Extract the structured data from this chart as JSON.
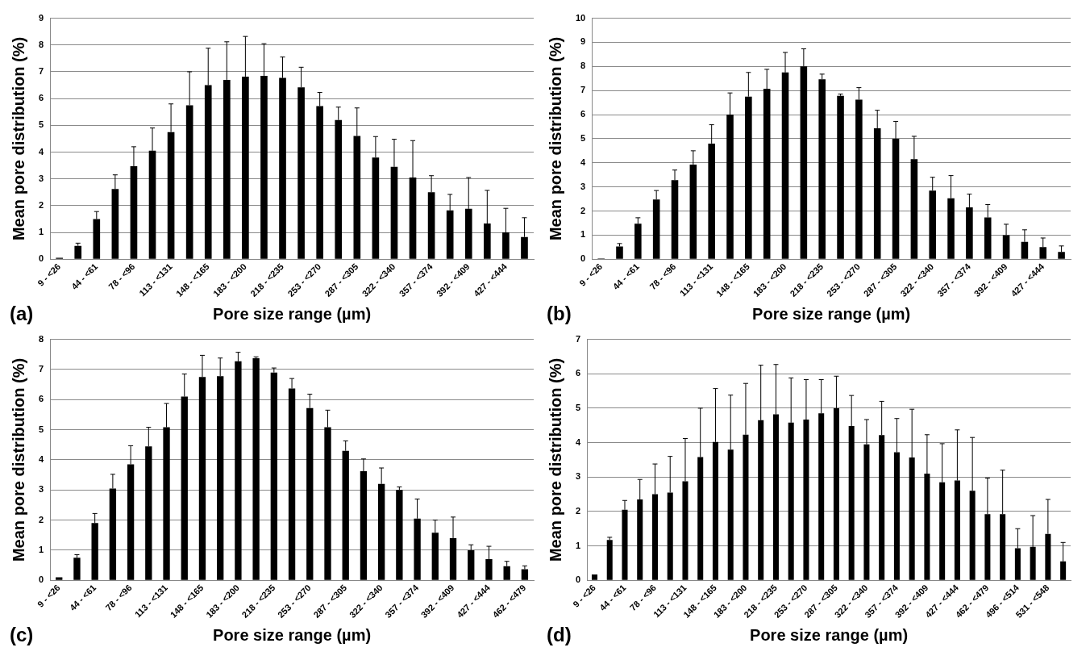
{
  "chart_data": [
    {
      "type": "bar",
      "xlabel": "Pore size range (µm)",
      "ylabel": "Mean pore distribution (%)",
      "color": "#000000",
      "grid": "y",
      "ylim": [
        0,
        9
      ],
      "yticks": [
        0,
        1,
        2,
        3,
        4,
        5,
        6,
        7,
        8,
        9
      ],
      "annotations": [
        "(a)"
      ],
      "categories": [
        "9 - <26",
        null,
        "44 - <61",
        null,
        "78 - <96",
        null,
        "113 - <131",
        null,
        "148 - <165",
        null,
        "183 - <200",
        null,
        "218 - <235",
        null,
        "253 - <270",
        null,
        "287 - <305",
        null,
        "322 - <340",
        null,
        "357 - <374",
        null,
        "392 - <409",
        null,
        "427 - <444",
        null
      ],
      "values": [
        0.05,
        0.5,
        1.5,
        2.62,
        3.47,
        4.05,
        4.75,
        5.75,
        6.5,
        6.7,
        6.82,
        6.85,
        6.77,
        6.42,
        5.72,
        5.2,
        4.6,
        3.8,
        3.45,
        3.05,
        2.5,
        1.82,
        1.88,
        1.33,
        1.0,
        0.83
      ],
      "errors": [
        null,
        0.1,
        0.28,
        0.53,
        0.73,
        0.85,
        1.05,
        1.25,
        1.38,
        1.42,
        1.5,
        1.2,
        0.78,
        0.75,
        0.51,
        0.48,
        1.05,
        0.78,
        1.03,
        1.38,
        0.62,
        0.6,
        1.17,
        1.24,
        0.9,
        0.72
      ]
    },
    {
      "type": "bar",
      "xlabel": "Pore size range (µm)",
      "ylabel": "Mean pore distribution (%)",
      "color": "#000000",
      "grid": "y",
      "ylim": [
        0,
        10
      ],
      "yticks": [
        0,
        1,
        2,
        3,
        4,
        5,
        6,
        7,
        8,
        9,
        10
      ],
      "annotations": [
        "(b)"
      ],
      "categories": [
        "9 - <26",
        null,
        "44 - <61",
        null,
        "78 - <96",
        null,
        "113 - <131",
        null,
        "148 - <165",
        null,
        "183 - <200",
        null,
        "218 - <235",
        null,
        "253 - <270",
        null,
        "287 - <305",
        null,
        "322 - <340",
        null,
        "357 - <374",
        null,
        "392 - <409",
        null,
        "427 - <444",
        null
      ],
      "values": [
        0.03,
        0.53,
        1.47,
        2.48,
        3.28,
        3.93,
        4.8,
        6.0,
        6.75,
        7.07,
        7.75,
        8.0,
        7.47,
        6.78,
        6.62,
        5.43,
        5.0,
        4.15,
        2.85,
        2.53,
        2.15,
        1.73,
        1.0,
        0.72,
        0.5,
        0.3
      ],
      "errors": [
        null,
        0.12,
        0.25,
        0.37,
        0.42,
        0.57,
        0.78,
        0.9,
        1.0,
        0.81,
        0.83,
        0.73,
        0.21,
        0.07,
        0.5,
        0.75,
        0.72,
        0.95,
        0.55,
        0.94,
        0.55,
        0.54,
        0.45,
        0.5,
        0.38,
        0.25
      ]
    },
    {
      "type": "bar",
      "xlabel": "Pore size range (µm)",
      "ylabel": "Mean pore distribution (%)",
      "color": "#000000",
      "grid": "y",
      "ylim": [
        0,
        8
      ],
      "yticks": [
        0,
        1,
        2,
        3,
        4,
        5,
        6,
        7,
        8
      ],
      "annotations": [
        "(c)"
      ],
      "categories": [
        "9 - <26",
        null,
        "44 - <61",
        null,
        "78 - <96",
        null,
        "113 - <131",
        null,
        "148 - <165",
        null,
        "183 - <200",
        null,
        "218 - <235",
        null,
        "253 - <270",
        null,
        "287 - <305",
        null,
        "322 - <340",
        null,
        "357 - <374",
        null,
        "392 - <409",
        null,
        "427 - <444",
        null,
        "462 - <479"
      ],
      "values": [
        0.1,
        0.75,
        1.9,
        3.05,
        3.85,
        4.45,
        5.08,
        6.1,
        6.75,
        6.78,
        7.27,
        7.37,
        6.9,
        6.37,
        5.72,
        5.08,
        4.3,
        3.62,
        3.2,
        3.0,
        2.05,
        1.58,
        1.4,
        1.0,
        0.7,
        0.47,
        0.37
      ],
      "errors": [
        null,
        0.1,
        0.32,
        0.47,
        0.62,
        0.63,
        0.79,
        0.75,
        0.72,
        0.6,
        0.3,
        0.05,
        0.15,
        0.33,
        0.46,
        0.57,
        0.33,
        0.41,
        0.53,
        0.1,
        0.65,
        0.42,
        0.7,
        0.18,
        0.43,
        0.16,
        0.11
      ]
    },
    {
      "type": "bar",
      "xlabel": "Pore size range (µm)",
      "ylabel": "Mean pore distribution (%)",
      "color": "#000000",
      "grid": "y",
      "ylim": [
        0,
        7
      ],
      "yticks": [
        0,
        1,
        2,
        3,
        4,
        5,
        6,
        7
      ],
      "annotations": [
        "(d)"
      ],
      "categories": [
        "9 - <26",
        null,
        "44 - <61",
        null,
        "78 - <96",
        null,
        "113 - <131",
        null,
        "148 - <165",
        null,
        "183 - <200",
        null,
        "218 - <235",
        null,
        "253 - <270",
        null,
        "287 - <305",
        null,
        "322 - <340",
        null,
        "357 - <374",
        null,
        "392 - <409",
        null,
        "427 - <444",
        null,
        "462 - <479",
        null,
        "496 - <514",
        null,
        "531 - <548",
        null
      ],
      "values": [
        0.17,
        1.17,
        2.05,
        2.35,
        2.5,
        2.55,
        2.88,
        3.58,
        4.02,
        3.8,
        4.23,
        4.65,
        4.82,
        4.58,
        4.67,
        4.85,
        5.0,
        4.48,
        3.95,
        4.22,
        3.72,
        3.57,
        3.1,
        2.85,
        2.9,
        2.6,
        1.92,
        1.92,
        0.93,
        0.97,
        1.35,
        0.55
      ],
      "errors": [
        null,
        0.08,
        0.27,
        0.58,
        0.88,
        1.05,
        1.24,
        1.42,
        1.55,
        1.58,
        1.49,
        1.6,
        1.45,
        1.3,
        1.16,
        0.98,
        0.93,
        0.89,
        0.72,
        0.98,
        0.98,
        1.4,
        1.13,
        1.12,
        1.47,
        1.55,
        1.05,
        1.28,
        0.57,
        0.91,
        1.0,
        0.55
      ]
    }
  ]
}
